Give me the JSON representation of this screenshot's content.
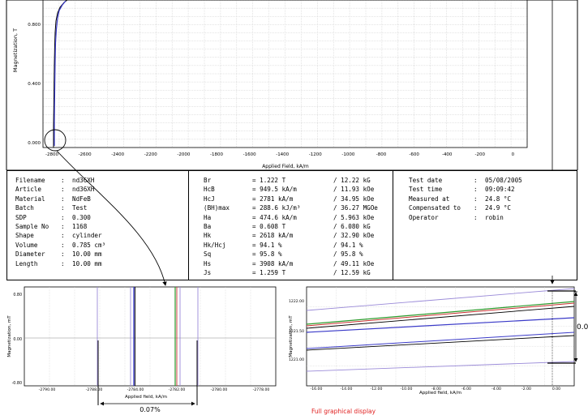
{
  "main_chart": {
    "type": "line",
    "ylabel": "Magnetization, T",
    "xlabel": "Applied Field, kA/m",
    "y_ticks": [
      "0.800",
      "0.400",
      "0.000"
    ],
    "x_ticks": [
      "-2800",
      "-2600",
      "-2400",
      "-2200",
      "-2000",
      "-1800",
      "-1600",
      "-1400",
      "-1200",
      "-1000",
      "-800",
      "-600",
      "-400",
      "-200",
      "0"
    ],
    "xlim": [
      -2900,
      80
    ],
    "ylim": [
      -0.02,
      1.1
    ]
  },
  "info_left": [
    {
      "label": "Filename",
      "value": "nd36XH"
    },
    {
      "label": "Article",
      "value": "nd36XH"
    },
    {
      "label": "Material",
      "value": "NdFeB"
    },
    {
      "label": "Batch",
      "value": "Test"
    },
    {
      "label": "SDP",
      "value": "0.300"
    },
    {
      "label": "Sample No",
      "value": "1168"
    },
    {
      "label": "Shape",
      "value": "cylinder"
    },
    {
      "label": "Volume",
      "value": "0.785 cm³"
    },
    {
      "label": "Diameter",
      "value": "10.00 mm"
    },
    {
      "label": "Length",
      "value": "10.00 mm"
    }
  ],
  "info_mid": [
    {
      "label": "Br",
      "v1": "= 1.222 T",
      "v2": "/ 12.22 kG"
    },
    {
      "label": "HcB",
      "v1": "= 949.5 kA/m",
      "v2": "/ 11.93 kOe"
    },
    {
      "label": "HcJ",
      "v1": "= 2781 kA/m",
      "v2": "/ 34.95 kOe"
    },
    {
      "label": "(BH)max",
      "v1": "= 288.6 kJ/m³",
      "v2": "/ 36.27 MGOe"
    },
    {
      "label": "Ha",
      "v1": "= 474.6 kA/m",
      "v2": "/ 5.963 kOe"
    },
    {
      "label": "Ba",
      "v1": "= 0.608 T",
      "v2": "/ 6.080 kG"
    },
    {
      "label": "Hk",
      "v1": "= 2618 kA/m",
      "v2": "/ 32.90 kOe"
    },
    {
      "label": "Hk/Hcj",
      "v1": "= 94.1 %",
      "v2": "/ 94.1 %"
    },
    {
      "label": "Sq",
      "v1": "= 95.8 %",
      "v2": "/ 95.8 %"
    },
    {
      "label": "Hs",
      "v1": "= 3908 kA/m",
      "v2": "/ 49.11 kOe"
    },
    {
      "label": "Js",
      "v1": "= 1.259 T",
      "v2": "/ 12.59 kG"
    }
  ],
  "info_right": [
    {
      "label": "Test date",
      "value": "05/08/2005"
    },
    {
      "label": "Test time",
      "value": "09:09:42"
    },
    {
      "label": "Measured at",
      "value": "24.8 °C"
    },
    {
      "label": "Compensated to",
      "value": "24.9 °C"
    },
    {
      "label": "Operator",
      "value": "robin"
    }
  ],
  "zoom_left": {
    "ylabel": "Magnetization, mT",
    "xlabel": "Applied field, kA/m",
    "y_ticks": [
      "0.80",
      "0.00",
      "-0.80"
    ],
    "x_ticks": [
      "-2790.00",
      "-2788.00",
      "-2784.00",
      "-2782.00",
      "-2780.00",
      "-2778.00"
    ],
    "percent_label": "0.07%"
  },
  "zoom_right": {
    "ylabel": "Magnetization, mT",
    "xlabel": "Applied field, kA/m",
    "y_ticks": [
      "1222.00",
      "1221.50",
      "1221.00"
    ],
    "x_ticks": [
      "-16.00",
      "-14.00",
      "-12.00",
      "-10.00",
      "-8.00",
      "-6.00",
      "-4.00",
      "-2.00",
      "0.00"
    ],
    "side_label": "0.0"
  },
  "caption": "Full graphical display",
  "colors": {
    "blue": "#3a3ac8",
    "green": "#2a9a2a",
    "red": "#c83030",
    "purple": "#9a8ad8",
    "caption": "#e02020",
    "grid": "#c8c8c8"
  }
}
